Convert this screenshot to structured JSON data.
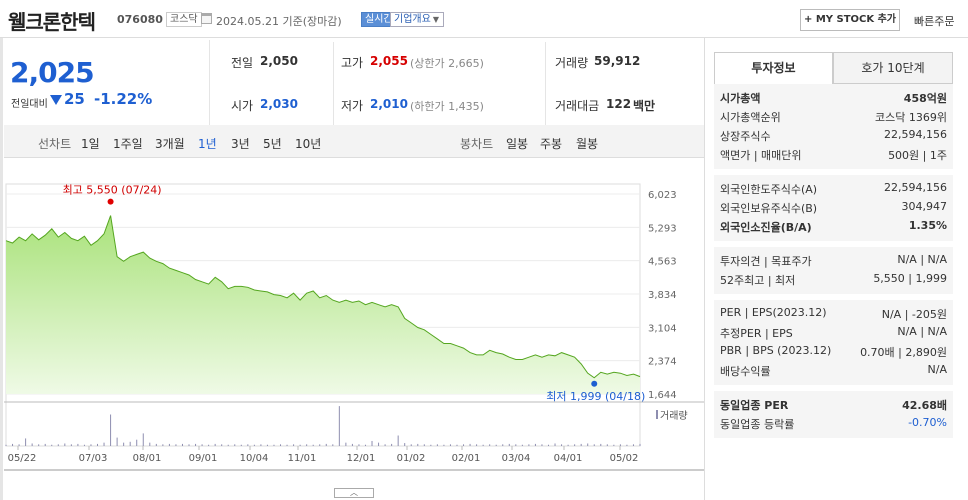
{
  "header": {
    "company_name": "웰크론한텍",
    "code": "076080",
    "market": "코스닥",
    "date_text": "2024.05.21  기준(장마감)",
    "realtime": "실시간",
    "company_info": "기업개요",
    "mystock": "+ MY STOCK 추가",
    "quick_order": "빠른주문"
  },
  "quote": {
    "price": "2,025",
    "vs_label": "전일대비",
    "vs_value": "25",
    "vs_pct": "-1.22%",
    "prev_label": "전일",
    "prev_value": "2,050",
    "high_label": "고가",
    "high_value": "2,055",
    "high_note": "(상한가 2,665)",
    "volume_label": "거래량",
    "volume_value": "59,912",
    "open_label": "시가",
    "open_value": "2,030",
    "low_label": "저가",
    "low_value": "2,010",
    "low_note": "(하한가 1,435)",
    "amount_label": "거래대금",
    "amount_value": "122",
    "amount_unit": "백만"
  },
  "range_bar": {
    "line_label": "선차트",
    "ranges": [
      "1일",
      "1주일",
      "3개월",
      "1년",
      "3년",
      "5년",
      "10년"
    ],
    "selected": "1년",
    "candle_label": "봉차트",
    "periods": [
      "일봉",
      "주봉",
      "월봉"
    ]
  },
  "chart_data": {
    "type": "area",
    "y_ticks": [
      "6,023",
      "5,293",
      "4,563",
      "3,834",
      "3,104",
      "2,374",
      "1,644"
    ],
    "ylim": [
      1644,
      6023
    ],
    "x_labels": [
      "05/22",
      "07/03",
      "08/01",
      "09/01",
      "10/04",
      "11/01",
      "12/01",
      "01/02",
      "02/01",
      "03/04",
      "04/01",
      "05/02"
    ],
    "high_annotation": "최고 5,550 (07/24)",
    "low_annotation": "최저 1,999 (04/18)",
    "volume_legend": "거래량",
    "values": [
      5000,
      4950,
      5080,
      5000,
      5150,
      5020,
      5120,
      5260,
      5080,
      5180,
      5050,
      5000,
      5100,
      4900,
      5000,
      5150,
      5550,
      4650,
      4550,
      4650,
      4700,
      4750,
      4620,
      4550,
      4500,
      4400,
      4350,
      4300,
      4250,
      4150,
      4100,
      4050,
      4200,
      4100,
      3950,
      4000,
      4000,
      3980,
      3920,
      3900,
      3880,
      3820,
      3800,
      3750,
      3850,
      3700,
      3850,
      3900,
      3750,
      3800,
      3700,
      3650,
      3700,
      3650,
      3680,
      3600,
      3650,
      3600,
      3550,
      3600,
      3550,
      3300,
      3200,
      3100,
      3050,
      2950,
      2850,
      2750,
      2750,
      2700,
      2650,
      2550,
      2500,
      2500,
      2600,
      2550,
      2520,
      2450,
      2400,
      2400,
      2450,
      2500,
      2450,
      2500,
      2480,
      2550,
      2500,
      2450,
      2300,
      2100,
      1999,
      2120,
      2080,
      2120,
      2100,
      2050,
      2080,
      2025
    ],
    "volumes": [
      0.03,
      0.05,
      0.04,
      0.18,
      0.06,
      0.04,
      0.05,
      0.03,
      0.04,
      0.06,
      0.04,
      0.05,
      0.03,
      0.04,
      0.05,
      0.08,
      0.75,
      0.2,
      0.08,
      0.1,
      0.15,
      0.3,
      0.08,
      0.05,
      0.04,
      0.05,
      0.04,
      0.05,
      0.04,
      0.05,
      0.04,
      0.03,
      0.05,
      0.04,
      0.03,
      0.04,
      0.03,
      0.04,
      0.03,
      0.04,
      0.03,
      0.03,
      0.04,
      0.03,
      0.04,
      0.03,
      0.04,
      0.03,
      0.04,
      0.05,
      0.04,
      0.95,
      0.08,
      0.05,
      0.04,
      0.03,
      0.12,
      0.08,
      0.04,
      0.05,
      0.25,
      0.07,
      0.04,
      0.05,
      0.04,
      0.03,
      0.04,
      0.03,
      0.04,
      0.03,
      0.04,
      0.05,
      0.04,
      0.03,
      0.04,
      0.03,
      0.04,
      0.05,
      0.04,
      0.03,
      0.04,
      0.05,
      0.04,
      0.03,
      0.06,
      0.04,
      0.03,
      0.04,
      0.05,
      0.06,
      0.04,
      0.05,
      0.04,
      0.03,
      0.04,
      0.03,
      0.04,
      0.05
    ]
  },
  "panel": {
    "tab_invest": "투자정보",
    "tab_orderbook": "호가 10단계",
    "sections": [
      {
        "rows": [
          {
            "label": "시가총액",
            "value": "458억원",
            "bold": true
          },
          {
            "label": "시가총액순위",
            "value": "코스닥 1369위"
          },
          {
            "label": "상장주식수",
            "value": "22,594,156"
          },
          {
            "label": "액면가 | 매매단위",
            "value": "500원 | 1주"
          }
        ]
      },
      {
        "rows": [
          {
            "label": "외국인한도주식수(A)",
            "value": "22,594,156"
          },
          {
            "label": "외국인보유주식수(B)",
            "value": "304,947"
          },
          {
            "label": "외국인소진율(B/A)",
            "value": "1.35%",
            "bold": true
          }
        ]
      },
      {
        "rows": [
          {
            "label": "투자의견 | 목표주가",
            "value": "N/A | N/A"
          },
          {
            "label": "52주최고 | 최저",
            "value": "5,550 | 1,999"
          }
        ]
      },
      {
        "rows": [
          {
            "label": "PER | EPS(2023.12)",
            "value": "N/A | -205원"
          },
          {
            "label": "추정PER | EPS",
            "value": "N/A | N/A"
          },
          {
            "label": "PBR | BPS (2023.12)",
            "value": "0.70배 | 2,890원"
          },
          {
            "label": "배당수익률",
            "value": "N/A"
          }
        ]
      },
      {
        "rows": [
          {
            "label": "동일업종 PER",
            "value": "42.68배",
            "bold": true
          },
          {
            "label": "동일업종 등락률",
            "value": "-0.70%",
            "color": "#1e5fd1"
          }
        ]
      }
    ]
  }
}
